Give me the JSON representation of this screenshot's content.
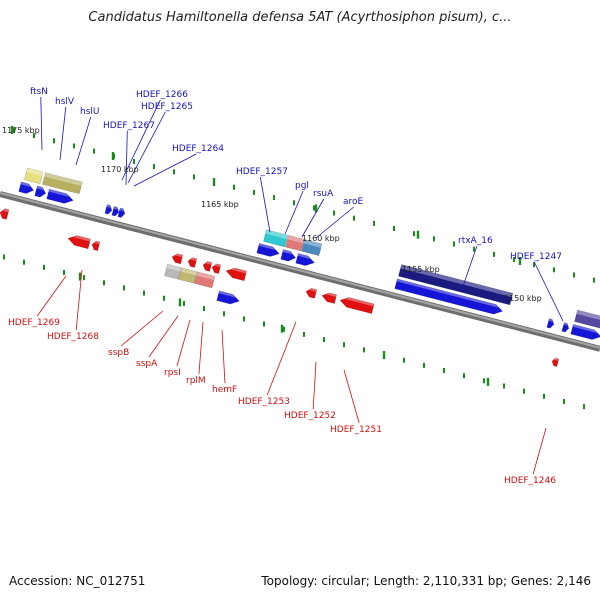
{
  "title": "Candidatus Hamiltonella defensa 5AT (Acyrthosiphon pisum), c...",
  "footer": {
    "accession": "Accession: NC_012751",
    "topology": "Topology: circular; Length: 2,110,331 bp; Genes: 2,146"
  },
  "colors": {
    "backbone": "#808080",
    "forward_label": "#1515b8",
    "reverse_label": "#cc1111",
    "tick_fwd": "#1a8a1a",
    "tick_rev": "#1a8a1a"
  },
  "kbp_labels": [
    "1175 kbp",
    "1170 kbp",
    "1165 kbp",
    "1160 kbp",
    "1155 kbp",
    "1150 kbp"
  ],
  "forward_labels": [
    "ftsN",
    "hslV",
    "hslU",
    "HDEF_1266",
    "HDEF_1265",
    "HDEF_1267",
    "HDEF_1264",
    "HDEF_1257",
    "pgl",
    "rsuA",
    "aroE",
    "rtxA_16",
    "HDEF_1247"
  ],
  "reverse_labels": [
    "HDEF_1269",
    "HDEF_1268",
    "sspB",
    "sspA",
    "rpsI",
    "rplM",
    "hemF",
    "HDEF_1253",
    "HDEF_1252",
    "HDEF_1251",
    "HDEF_1246"
  ]
}
